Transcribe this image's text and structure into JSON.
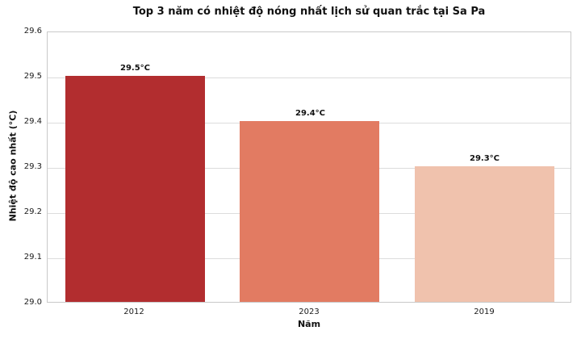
{
  "chart_data": {
    "type": "bar",
    "title": "Top 3 năm có nhiệt độ nóng nhất lịch sử quan trắc tại Sa Pa",
    "xlabel": "Năm",
    "ylabel": "Nhiệt độ cao nhất (°C)",
    "categories": [
      "2012",
      "2023",
      "2019"
    ],
    "values": [
      29.5,
      29.4,
      29.3
    ],
    "bar_value_labels": [
      "29.5°C",
      "29.4°C",
      "29.3°C"
    ],
    "bar_colors": [
      "#b22d2f",
      "#e27b62",
      "#f0c2ad"
    ],
    "ylim": [
      29.0,
      29.6
    ],
    "yticks": [
      29.0,
      29.1,
      29.2,
      29.3,
      29.4,
      29.5,
      29.6
    ],
    "ytick_labels": [
      "29.0",
      "29.1",
      "29.2",
      "29.3",
      "29.4",
      "29.5",
      "29.6"
    ],
    "grid": true,
    "legend": "none",
    "grid_color": "#dcdcdc",
    "spine_color": "#c9c9c9",
    "background_color": "#ffffff",
    "title_color": "#111111"
  }
}
